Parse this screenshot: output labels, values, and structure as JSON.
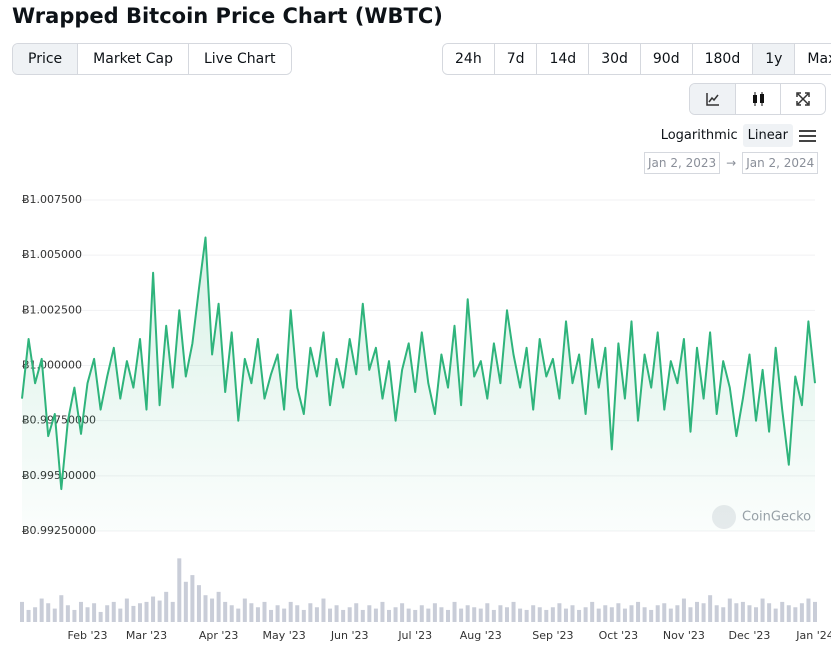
{
  "header": {
    "title": "Wrapped Bitcoin Price Chart (WBTC)"
  },
  "tabs": {
    "items": [
      "Price",
      "Market Cap",
      "Live Chart"
    ],
    "active": 0
  },
  "ranges": {
    "items": [
      "24h",
      "7d",
      "14d",
      "30d",
      "90d",
      "180d",
      "1y",
      "Max"
    ],
    "active": 6
  },
  "chart_style": {
    "active": 0
  },
  "scale": {
    "items": [
      "Logarithmic",
      "Linear"
    ],
    "active": 1
  },
  "date_range": {
    "from": "Jan 2, 2023",
    "arrow": "→",
    "to": "Jan 2, 2024"
  },
  "watermark": "CoinGecko",
  "chart_data": {
    "type": "line",
    "color": "#2fb47c",
    "categories": [
      null,
      null,
      null,
      null,
      null,
      null,
      null,
      null,
      null,
      null,
      "Feb '23",
      null,
      null,
      null,
      null,
      null,
      null,
      null,
      null,
      "Mar '23",
      null,
      null,
      null,
      null,
      null,
      null,
      null,
      null,
      null,
      null,
      "Apr '23",
      null,
      null,
      null,
      null,
      null,
      null,
      null,
      null,
      null,
      "May '23",
      null,
      null,
      null,
      null,
      null,
      null,
      null,
      null,
      null,
      "Jun '23",
      null,
      null,
      null,
      null,
      null,
      null,
      null,
      null,
      null,
      "Jul '23",
      null,
      null,
      null,
      null,
      null,
      null,
      null,
      null,
      null,
      "Aug '23",
      null,
      null,
      null,
      null,
      null,
      null,
      null,
      null,
      null,
      null,
      "Sep '23",
      null,
      null,
      null,
      null,
      null,
      null,
      null,
      null,
      null,
      "Oct '23",
      null,
      null,
      null,
      null,
      null,
      null,
      null,
      null,
      null,
      "Nov '23",
      null,
      null,
      null,
      null,
      null,
      null,
      null,
      null,
      null,
      "Dec '23",
      null,
      null,
      null,
      null,
      null,
      null,
      null,
      null,
      null,
      "Jan '24"
    ],
    "values": [
      0.9985,
      1.0012,
      0.9992,
      1.0003,
      0.9968,
      0.9978,
      0.9944,
      0.9975,
      0.999,
      0.9969,
      0.9992,
      1.0003,
      0.998,
      0.9995,
      1.0008,
      0.9985,
      1.0002,
      0.999,
      1.0012,
      0.998,
      1.0042,
      0.9982,
      1.0018,
      0.999,
      1.0025,
      0.9995,
      1.001,
      1.0035,
      1.0058,
      1.0005,
      1.0028,
      0.9988,
      1.0015,
      0.9975,
      1.0003,
      0.9992,
      1.0012,
      0.9985,
      0.9996,
      1.0005,
      0.998,
      1.0025,
      0.999,
      0.9978,
      1.0008,
      0.9995,
      1.0015,
      0.9982,
      1.0003,
      0.999,
      1.0012,
      0.9996,
      1.0028,
      0.9998,
      1.0008,
      0.9985,
      1.0002,
      0.9975,
      0.9998,
      1.001,
      0.9988,
      1.0015,
      0.9992,
      0.9978,
      1.0005,
      0.999,
      1.0018,
      0.9982,
      1.003,
      0.9995,
      1.0002,
      0.9985,
      1.001,
      0.9992,
      1.0025,
      1.0005,
      0.999,
      1.0008,
      0.998,
      1.0012,
      0.9995,
      1.0003,
      0.9985,
      1.002,
      0.9992,
      1.0005,
      0.9978,
      1.0012,
      0.999,
      1.0008,
      0.9962,
      1.001,
      0.9985,
      1.002,
      0.9975,
      1.0005,
      0.999,
      1.0015,
      0.998,
      1.0002,
      0.9992,
      1.0012,
      0.997,
      1.0008,
      0.9985,
      1.0015,
      0.9978,
      1.0002,
      0.999,
      0.9968,
      0.9985,
      1.0005,
      0.9975,
      0.9998,
      0.997,
      1.0008,
      0.998,
      0.9955,
      0.9995,
      0.9982,
      1.002,
      0.9992
    ],
    "ylim": [
      0.9925,
      1.0075
    ],
    "yticks": [
      {
        "value": 0.9925,
        "label": "Ƀ0.99250000"
      },
      {
        "value": 0.995,
        "label": "Ƀ0.99500000"
      },
      {
        "value": 0.9975,
        "label": "Ƀ0.99750000"
      },
      {
        "value": 1.0,
        "label": "Ƀ1.000000"
      },
      {
        "value": 1.0025,
        "label": "Ƀ1.002500"
      },
      {
        "value": 1.005,
        "label": "Ƀ1.005000"
      },
      {
        "value": 1.0075,
        "label": "Ƀ1.007500"
      }
    ],
    "grid": true,
    "volume": {
      "color": "#c9cdd8",
      "ylim": [
        0,
        100
      ],
      "values": [
        30,
        18,
        22,
        35,
        28,
        20,
        40,
        25,
        18,
        30,
        22,
        28,
        15,
        25,
        30,
        20,
        35,
        24,
        28,
        30,
        38,
        32,
        45,
        30,
        95,
        60,
        70,
        55,
        40,
        35,
        45,
        30,
        25,
        20,
        35,
        28,
        22,
        30,
        18,
        25,
        20,
        30,
        25,
        18,
        28,
        22,
        35,
        20,
        25,
        18,
        22,
        28,
        18,
        25,
        20,
        30,
        18,
        22,
        28,
        20,
        18,
        25,
        20,
        28,
        22,
        18,
        30,
        20,
        25,
        22,
        20,
        28,
        18,
        25,
        22,
        30,
        20,
        18,
        25,
        22,
        18,
        22,
        28,
        20,
        25,
        18,
        22,
        30,
        20,
        25,
        22,
        28,
        20,
        25,
        30,
        22,
        18,
        25,
        28,
        20,
        25,
        35,
        22,
        30,
        28,
        40,
        25,
        22,
        35,
        28,
        30,
        25,
        22,
        35,
        28,
        20,
        30,
        25,
        22,
        28,
        35,
        30
      ]
    }
  }
}
